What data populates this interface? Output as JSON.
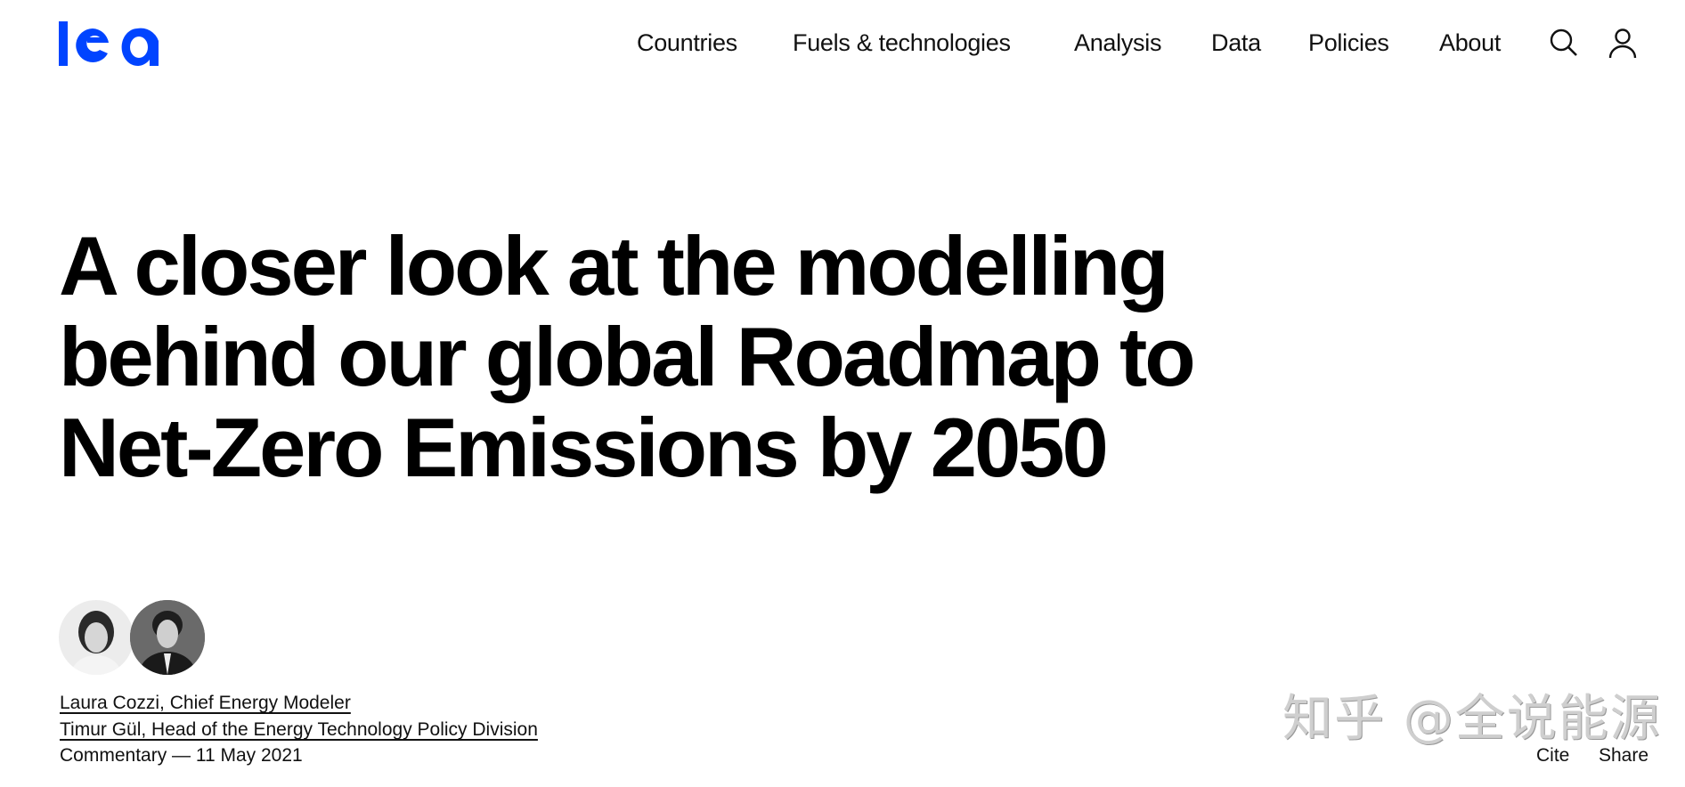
{
  "brand": {
    "logo_text": "iea",
    "color": "#0044ff"
  },
  "nav": {
    "items": [
      "Countries",
      "Fuels & technologies",
      "Analysis",
      "Data",
      "Policies",
      "About"
    ],
    "icons": [
      "search-icon",
      "user-icon"
    ]
  },
  "article": {
    "title_lines": [
      "A closer look at the modelling",
      "behind our global Roadmap to",
      "Net-Zero Emissions by 2050"
    ],
    "authors": [
      "Laura Cozzi, Chief Energy Modeler",
      "Timur Gül, Head of the Energy Technology Policy Division"
    ],
    "meta": "Commentary — 11 May 2021",
    "actions": {
      "cite": "Cite",
      "share": "Share"
    }
  },
  "watermark": "知乎 @全说能源"
}
